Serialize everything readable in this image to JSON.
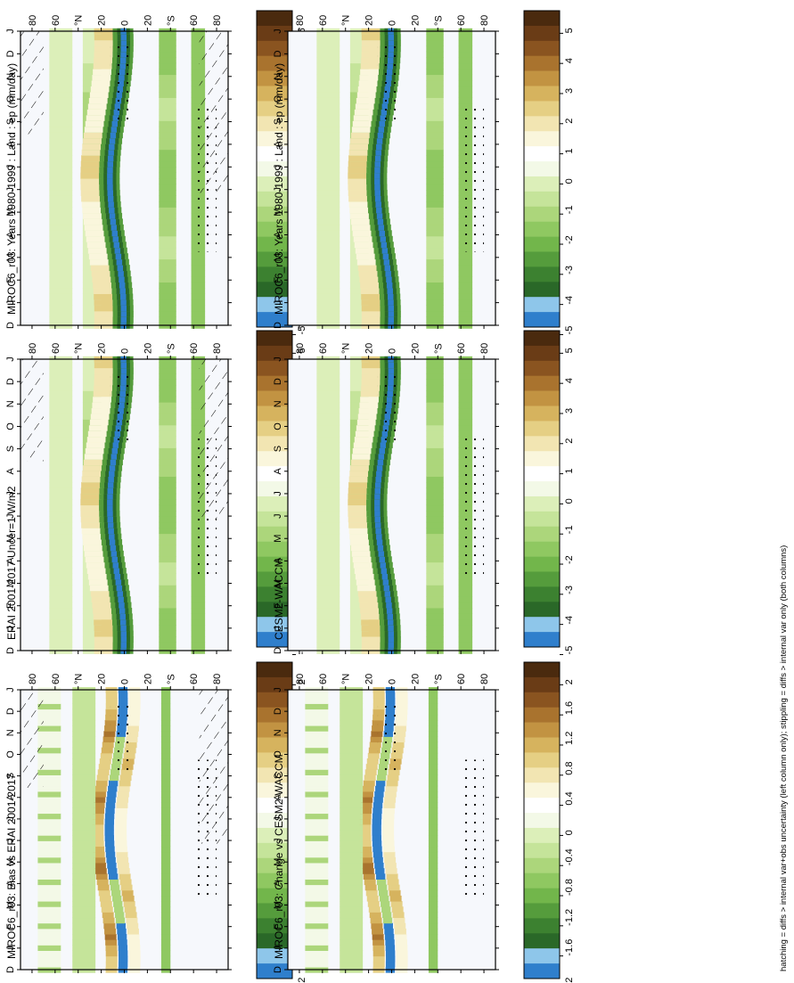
{
  "footnote": "hatching = diffs > internal var+obs uncertainty (left column only); stippling = diffs > internal var only (both columns)",
  "months": [
    "D",
    "J",
    "F",
    "M",
    "A",
    "M",
    "J",
    "J",
    "A",
    "S",
    "O",
    "N",
    "D",
    "J"
  ],
  "lat_ticks": [
    "80",
    "60",
    "°N",
    "20",
    "0",
    "20",
    "°S",
    "60",
    "80"
  ],
  "scales": {
    "main": {
      "labels": [
        "5",
        "4",
        "3",
        "2",
        "1",
        "0",
        "-1",
        "-2",
        "-3",
        "-4",
        "-5"
      ],
      "colors": [
        "#4a2a0e",
        "#6a3c16",
        "#8a5420",
        "#a9732e",
        "#c29342",
        "#d6b35e",
        "#e5cf84",
        "#f2e5b2",
        "#faf6dc",
        "#ffffff",
        "#f3f9e7",
        "#dcefb9",
        "#c5e49a",
        "#acd67b",
        "#8fc861",
        "#72b64b",
        "#559c3c",
        "#3c8130",
        "#2a6828",
        "#8ec6ea",
        "#2f7fcc"
      ]
    },
    "diff": {
      "labels": [
        "2",
        "1.6",
        "1.2",
        "0.8",
        "0.4",
        "0",
        "-0.4",
        "-0.8",
        "-1.2",
        "-1.6",
        "-2"
      ],
      "colors": [
        "#4a2a0e",
        "#6a3c16",
        "#8a5420",
        "#a9732e",
        "#c29342",
        "#d6b35e",
        "#e5cf84",
        "#f2e5b2",
        "#faf6dc",
        "#ffffff",
        "#f3f9e7",
        "#dcefb9",
        "#c5e49a",
        "#acd67b",
        "#8fc861",
        "#72b64b",
        "#559c3c",
        "#3c8130",
        "#2a6828",
        "#8ec6ea",
        "#2f7fcc"
      ]
    }
  },
  "chart_data": [
    {
      "type": "heatmap",
      "id": "left-top",
      "title": "MIROC6_r03: Years 1980-1999 : Land : ep (mm/day)",
      "x": "month (Dec–Jan)",
      "y": "latitude",
      "range": [
        -5,
        5
      ],
      "units": "mm/day",
      "hatching": true,
      "stippling": true
    },
    {
      "type": "heatmap",
      "id": "left-mid",
      "title": "ERAI 2001-2017 Uncer=1 W/m2",
      "x": "month",
      "y": "latitude",
      "range": [
        -5,
        5
      ],
      "hatching": true,
      "stippling": true
    },
    {
      "type": "heatmap",
      "id": "left-bot",
      "title": "MIROC6_r03: Bias vs ERAI 2001-2017",
      "x": "month",
      "y": "latitude",
      "range": [
        -2,
        2
      ],
      "hatching": true,
      "stippling": true
    },
    {
      "type": "heatmap",
      "id": "right-top",
      "title": "MIROC6_r03: Years 1980-1999 : Land : ep (mm/day)",
      "x": "month",
      "y": "latitude",
      "range": [
        -5,
        5
      ],
      "stippling": true
    },
    {
      "type": "heatmap",
      "id": "right-mid",
      "title": "CESM2-WACCM",
      "x": "month",
      "y": "latitude",
      "range": [
        -5,
        5
      ],
      "stippling": true
    },
    {
      "type": "heatmap",
      "id": "right-bot",
      "title": "MIROC6_r03: Change vs CESM2-WACCM",
      "x": "month",
      "y": "latitude",
      "range": [
        -2,
        2
      ],
      "stippling": true
    }
  ]
}
